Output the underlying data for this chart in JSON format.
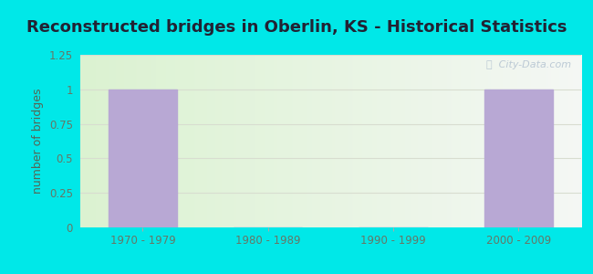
{
  "title": "Reconstructed bridges in Oberlin, KS - Historical Statistics",
  "categories": [
    "1970 - 1979",
    "1980 - 1989",
    "1990 - 1999",
    "2000 - 2009"
  ],
  "values": [
    1,
    0,
    0,
    1
  ],
  "bar_color": "#b8a8d4",
  "ylabel": "number of bridges",
  "ylim": [
    0,
    1.25
  ],
  "yticks": [
    0,
    0.25,
    0.5,
    0.75,
    1,
    1.25
  ],
  "background_outer": "#00e8e8",
  "grid_color": "#d8ddd0",
  "title_color": "#222233",
  "axis_label_color": "#556655",
  "tick_label_color": "#667766",
  "watermark_text": "ⓘ  City-Data.com",
  "title_fontsize": 13,
  "ylabel_fontsize": 9,
  "tick_fontsize": 8.5
}
